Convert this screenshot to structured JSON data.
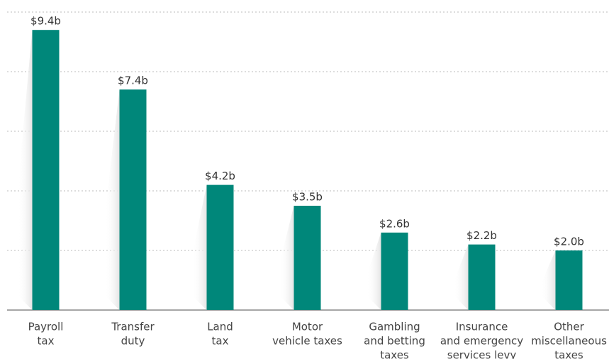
{
  "chart_data": {
    "type": "bar",
    "categories": [
      [
        "Payroll",
        "tax"
      ],
      [
        "Transfer",
        "duty"
      ],
      [
        "Land",
        "tax"
      ],
      [
        "Motor",
        "vehicle taxes"
      ],
      [
        "Gambling",
        "and betting",
        "taxes"
      ],
      [
        "Insurance",
        "and emergency",
        "services levy"
      ],
      [
        "Other",
        "miscellaneous",
        "taxes"
      ]
    ],
    "values": [
      9.4,
      7.4,
      4.2,
      3.5,
      2.6,
      2.2,
      2.0
    ],
    "value_labels": [
      "$9.4b",
      "$7.4b",
      "$4.2b",
      "$3.5b",
      "$2.6b",
      "$2.2b",
      "$2.0b"
    ],
    "color": "#00877a",
    "ylim": [
      0,
      10
    ],
    "yticks": [
      0,
      2,
      4,
      6,
      8,
      10
    ],
    "grid": true
  }
}
